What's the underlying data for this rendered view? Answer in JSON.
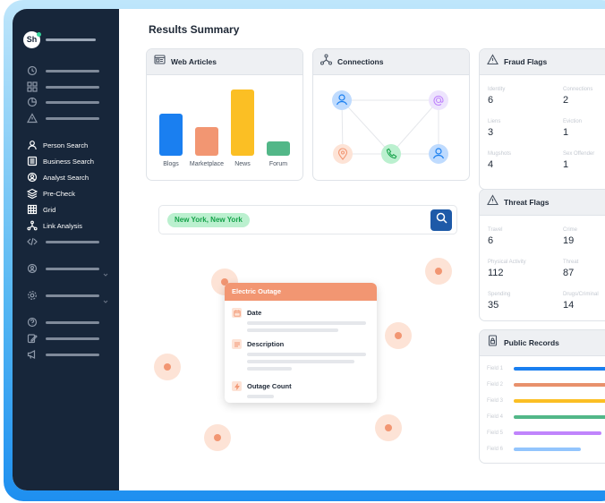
{
  "brand": {
    "initials": "Sh"
  },
  "sidebar": {
    "nav": [
      {
        "label": "Person Search",
        "icon": "person-icon"
      },
      {
        "label": "Business Search",
        "icon": "business-icon"
      },
      {
        "label": "Analyst Search",
        "icon": "analyst-icon"
      },
      {
        "label": "Pre-Check",
        "icon": "layers-icon"
      },
      {
        "label": "Grid",
        "icon": "grid-icon"
      },
      {
        "label": "Link Analysis",
        "icon": "link-analysis-icon"
      }
    ]
  },
  "main": {
    "title": "Results Summary"
  },
  "web_articles": {
    "title": "Web Articles",
    "chart_data": {
      "type": "bar",
      "categories": [
        "Blogs",
        "Marketplace",
        "News",
        "Forum"
      ],
      "values": [
        47,
        32,
        74,
        16
      ],
      "colors": [
        "#1a7ff0",
        "#f29672",
        "#fbbf24",
        "#52b788"
      ],
      "title": "",
      "xlabel": "",
      "ylabel": ""
    }
  },
  "connections": {
    "title": "Connections"
  },
  "fraud_flags": {
    "title": "Fraud Flags",
    "items": [
      {
        "label": "Identity",
        "value": "6"
      },
      {
        "label": "Connections",
        "value": "2"
      },
      {
        "label": "Liens",
        "value": "3"
      },
      {
        "label": "Eviction",
        "value": "1"
      },
      {
        "label": "Mugshots",
        "value": "4"
      },
      {
        "label": "Sex Offender",
        "value": "1"
      }
    ]
  },
  "threat_flags": {
    "title": "Threat Flags",
    "items": [
      {
        "label": "Travel",
        "value": "6"
      },
      {
        "label": "Crime",
        "value": "19"
      },
      {
        "label": "Physical Activity",
        "value": "112"
      },
      {
        "label": "Threat",
        "value": "87"
      },
      {
        "label": "Spending",
        "value": "35"
      },
      {
        "label": "Drugs/Criminal",
        "value": "14"
      }
    ]
  },
  "public_records": {
    "title": "Public Records",
    "rows": [
      {
        "label": "Field 1",
        "fraction": 1.0,
        "color": "#1a7ff0"
      },
      {
        "label": "Field 2",
        "fraction": 1.0,
        "color": "#e8916c"
      },
      {
        "label": "Field 3",
        "fraction": 1.0,
        "color": "#fbbf24"
      },
      {
        "label": "Field 4",
        "fraction": 0.92,
        "color": "#52b788"
      },
      {
        "label": "Field 5",
        "fraction": 0.75,
        "color": "#c084fc"
      },
      {
        "label": "Field 6",
        "fraction": 0.58,
        "color": "#93c5fd"
      }
    ]
  },
  "search": {
    "location_chip": "New York, New York"
  },
  "popup": {
    "title": "Electric Outage",
    "fields": [
      {
        "label": "Date"
      },
      {
        "label": "Description"
      },
      {
        "label": "Outage Count"
      }
    ]
  },
  "colors": {
    "sidebar": "#17263a",
    "accent": "#1e5aa8",
    "popup_header": "#f29672",
    "chip_bg": "#bbf0cf"
  }
}
